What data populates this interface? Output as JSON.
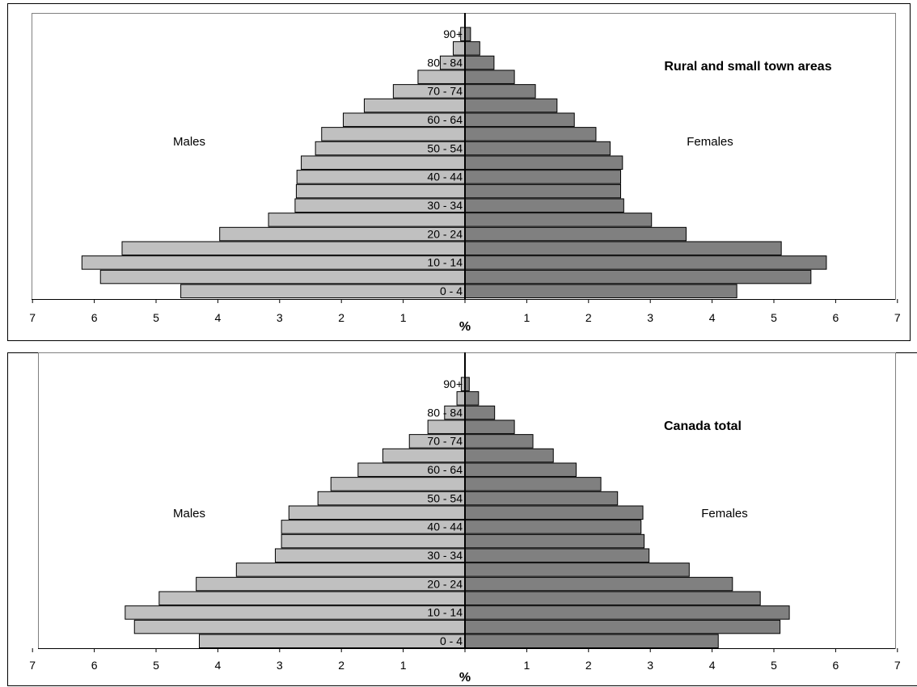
{
  "colors": {
    "males": "#c0c0c0",
    "females": "#808080",
    "outline": "#000000",
    "plot_border": "#808080"
  },
  "chart_data": [
    {
      "type": "bar",
      "title": "Rural and small town areas",
      "male_label": "Males",
      "female_label": "Females",
      "unit_label": "%",
      "xlim": [
        -7,
        7
      ],
      "x_ticks": [
        "7",
        "6",
        "5",
        "4",
        "3",
        "2",
        "1",
        "",
        "1",
        "2",
        "3",
        "4",
        "5",
        "6",
        "7"
      ],
      "categories": [
        "0 - 4",
        "5 - 9",
        "10 - 14",
        "15 - 19",
        "20 - 24",
        "25 - 29",
        "30 - 34",
        "35 - 39",
        "40 - 44",
        "45 - 49",
        "50 - 54",
        "55 - 59",
        "60 - 64",
        "65 - 69",
        "70 - 74",
        "75 - 79",
        "80 - 84",
        "85 - 89",
        "90+"
      ],
      "shown_category_labels": [
        "0 - 4",
        "10 - 14",
        "20 - 24",
        "30 - 34",
        "40 - 44",
        "50 - 54",
        "60 - 64",
        "70 - 74",
        "80 - 84",
        "90+"
      ],
      "series": [
        {
          "name": "Males",
          "values": [
            4.6,
            5.9,
            6.2,
            5.55,
            3.97,
            3.18,
            2.75,
            2.73,
            2.72,
            2.65,
            2.42,
            2.32,
            1.97,
            1.63,
            1.16,
            0.76,
            0.4,
            0.19,
            0.07
          ]
        },
        {
          "name": "Females",
          "values": [
            4.4,
            5.6,
            5.85,
            5.12,
            3.58,
            3.02,
            2.57,
            2.52,
            2.52,
            2.55,
            2.35,
            2.12,
            1.77,
            1.49,
            1.14,
            0.8,
            0.47,
            0.24,
            0.09
          ]
        }
      ]
    },
    {
      "type": "bar",
      "title": "Canada total",
      "male_label": "Males",
      "female_label": "Females",
      "unit_label": "%",
      "xlim": [
        -7,
        7
      ],
      "x_ticks": [
        "7",
        "6",
        "5",
        "4",
        "3",
        "2",
        "1",
        "",
        "1",
        "2",
        "3",
        "4",
        "5",
        "6",
        "7"
      ],
      "categories": [
        "0 - 4",
        "5 - 9",
        "10 - 14",
        "15 - 19",
        "20 - 24",
        "25 - 29",
        "30 - 34",
        "35 - 39",
        "40 - 44",
        "45 - 49",
        "50 - 54",
        "55 - 59",
        "60 - 64",
        "65 - 69",
        "70 - 74",
        "75 - 79",
        "80 - 84",
        "85 - 89",
        "90+"
      ],
      "shown_category_labels": [
        "0 - 4",
        "10 - 14",
        "20 - 24",
        "30 - 34",
        "40 - 44",
        "50 - 54",
        "60 - 64",
        "70 - 74",
        "80 - 84",
        "90+"
      ],
      "series": [
        {
          "name": "Males",
          "values": [
            4.3,
            5.35,
            5.5,
            4.95,
            4.35,
            3.7,
            3.07,
            2.97,
            2.97,
            2.85,
            2.38,
            2.17,
            1.73,
            1.33,
            0.9,
            0.6,
            0.33,
            0.13,
            0.06
          ]
        },
        {
          "name": "Females",
          "values": [
            4.1,
            5.1,
            5.25,
            4.78,
            4.33,
            3.63,
            2.98,
            2.9,
            2.85,
            2.88,
            2.47,
            2.2,
            1.8,
            1.43,
            1.1,
            0.8,
            0.48,
            0.22,
            0.07
          ]
        }
      ]
    }
  ]
}
